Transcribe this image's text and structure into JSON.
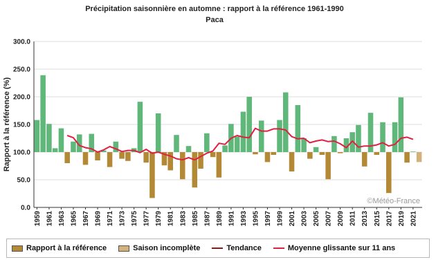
{
  "chart_data": {
    "type": "bar",
    "title": "Précipitation saisonnière en automne : rapport à la référence 1961-1990",
    "subtitle": "Paca",
    "ylabel": "Rapport à la référence (%)",
    "xlabel": "",
    "ylim": [
      0,
      300
    ],
    "baseline": 100,
    "yticks": [
      "0.0",
      "50.0",
      "100.0",
      "150.0",
      "200.0",
      "250.0",
      "300.0"
    ],
    "ytick_values": [
      0,
      50,
      100,
      150,
      200,
      250,
      300
    ],
    "xtick_labels": [
      "1959",
      "1961",
      "1963",
      "1965",
      "1967",
      "1969",
      "1971",
      "1973",
      "1975",
      "1977",
      "1979",
      "1981",
      "1983",
      "1985",
      "1987",
      "1989",
      "1991",
      "1993",
      "1995",
      "1997",
      "1999",
      "2001",
      "2003",
      "2005",
      "2007",
      "2009",
      "2011",
      "2013",
      "2015",
      "2017",
      "2019",
      "2021"
    ],
    "grid": true,
    "years": [
      1959,
      1960,
      1961,
      1962,
      1963,
      1964,
      1965,
      1966,
      1967,
      1968,
      1969,
      1970,
      1971,
      1972,
      1973,
      1974,
      1975,
      1976,
      1977,
      1978,
      1979,
      1980,
      1981,
      1982,
      1983,
      1984,
      1985,
      1986,
      1987,
      1988,
      1989,
      1990,
      1991,
      1992,
      1993,
      1994,
      1995,
      1996,
      1997,
      1998,
      1999,
      2000,
      2001,
      2002,
      2003,
      2004,
      2005,
      2006,
      2007,
      2008,
      2009,
      2010,
      2011,
      2012,
      2013,
      2014,
      2015,
      2016,
      2017,
      2018,
      2019,
      2020,
      2021,
      2022
    ],
    "values": [
      158,
      239,
      151,
      107,
      143,
      80,
      119,
      132,
      77,
      133,
      85,
      103,
      73,
      119,
      88,
      84,
      107,
      191,
      81,
      17,
      170,
      76,
      67,
      131,
      51,
      111,
      36,
      70,
      134,
      91,
      54,
      112,
      151,
      128,
      173,
      200,
      96,
      157,
      82,
      95,
      158,
      208,
      65,
      185,
      125,
      88,
      109,
      95,
      51,
      129,
      98,
      125,
      136,
      149,
      74,
      171,
      95,
      154,
      26,
      154,
      199,
      81,
      101,
      82
    ],
    "incomplete_index": 63,
    "rolling_mean_11": {
      "start_year": 1964,
      "values": [
        130,
        126,
        112,
        108,
        106,
        100,
        104,
        110,
        106,
        101,
        103,
        103,
        99,
        105,
        98,
        100,
        96,
        93,
        88,
        86,
        90,
        86,
        92,
        98,
        102,
        116,
        114,
        125,
        130,
        127,
        126,
        143,
        138,
        138,
        142,
        142,
        140,
        128,
        124,
        125,
        117,
        120,
        122,
        119,
        120,
        115,
        108,
        120,
        109,
        111,
        111,
        113,
        117,
        111,
        114,
        125,
        127,
        123
      ]
    },
    "series_colors": {
      "above": "#5fb77a",
      "below": "#b38936",
      "incomplete": "#d3b17b",
      "trend": "#7a1f1f",
      "moving_avg": "#e02040"
    },
    "legend_position": "bottom",
    "legend": [
      {
        "label": "Rapport à la référence",
        "type": "box",
        "color": "#b38936"
      },
      {
        "label": "Saison incomplète",
        "type": "box",
        "color": "#d3b17b"
      },
      {
        "label": "Tendance",
        "type": "line",
        "color": "#7a1f1f"
      },
      {
        "label": "Moyenne glissante sur 11 ans",
        "type": "line",
        "color": "#e02040"
      }
    ],
    "credit": "©Météo-France"
  }
}
